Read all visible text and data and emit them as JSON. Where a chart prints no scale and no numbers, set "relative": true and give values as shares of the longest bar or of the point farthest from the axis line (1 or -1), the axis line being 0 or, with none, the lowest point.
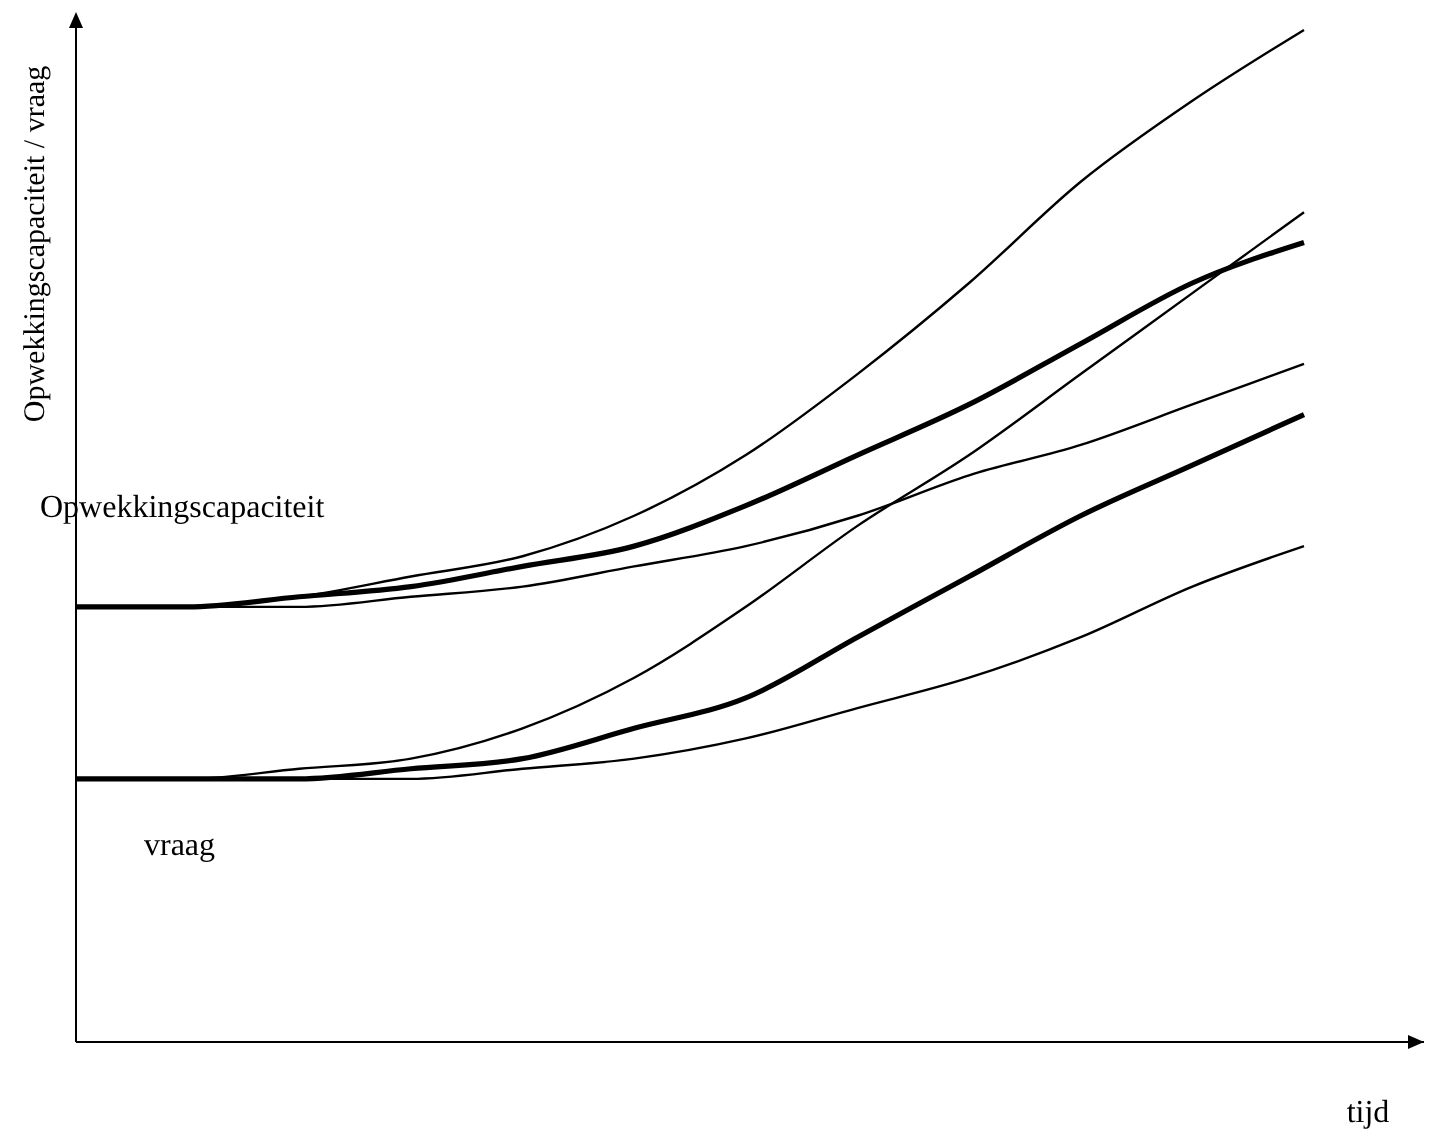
{
  "chart_data": {
    "type": "line",
    "relative": true,
    "ylabel": "Opwekkingscapaciteit / vraag",
    "xlabel": "tijd",
    "legend": false,
    "grid": false,
    "categories": [
      null,
      null,
      null,
      null,
      null,
      null,
      null,
      null,
      null,
      null,
      null,
      null
    ],
    "series": [
      {
        "color": "#000000",
        "values": [
          0.43,
          0.43,
          0.44,
          0.46,
          0.48,
          0.52,
          0.58,
          0.66,
          0.75,
          0.85,
          0.93,
          1
        ]
      },
      {
        "name": "Opwekkingscapaciteit",
        "color": "#000000",
        "values": [
          0.43,
          0.43,
          0.44,
          0.45,
          0.47,
          0.49,
          0.53,
          0.58,
          0.63,
          0.69,
          0.75,
          0.79
        ]
      },
      {
        "color": "#000000",
        "values": [
          0.43,
          0.43,
          0.43,
          0.44,
          0.45,
          0.47,
          0.49,
          0.52,
          0.56,
          0.59,
          0.63,
          0.67
        ]
      },
      {
        "color": "#000000",
        "values": [
          0.26,
          0.26,
          0.27,
          0.28,
          0.31,
          0.36,
          0.43,
          0.51,
          0.58,
          0.66,
          0.74,
          0.82
        ]
      },
      {
        "name": "vraag",
        "color": "#000000",
        "values": [
          0.26,
          0.26,
          0.26,
          0.27,
          0.28,
          0.31,
          0.34,
          0.4,
          0.46,
          0.52,
          0.57,
          0.62
        ]
      },
      {
        "color": "#000000",
        "values": [
          0.26,
          0.26,
          0.26,
          0.26,
          0.27,
          0.28,
          0.3,
          0.33,
          0.36,
          0.4,
          0.45,
          0.49
        ]
      }
    ]
  }
}
